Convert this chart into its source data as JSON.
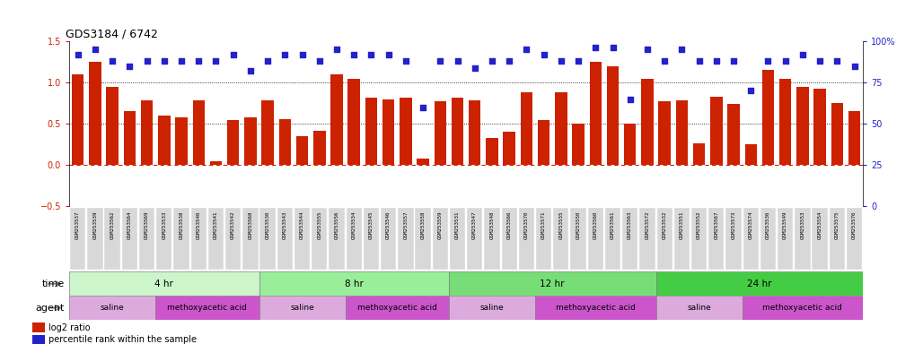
{
  "title": "GDS3184 / 6742",
  "sample_labels": [
    "GSM253537",
    "GSM253539",
    "GSM253562",
    "GSM253564",
    "GSM253569",
    "GSM253533",
    "GSM253538",
    "GSM253540",
    "GSM253541",
    "GSM253542",
    "GSM253568",
    "GSM253530",
    "GSM253543",
    "GSM253544",
    "GSM253555",
    "GSM253556",
    "GSM253534",
    "GSM253545",
    "GSM253546",
    "GSM253557",
    "GSM253558",
    "GSM253559",
    "GSM253531",
    "GSM253547",
    "GSM253548",
    "GSM253566",
    "GSM253570",
    "GSM253571",
    "GSM253535",
    "GSM253550",
    "GSM253560",
    "GSM253561",
    "GSM253563",
    "GSM253572",
    "GSM253532",
    "GSM253551",
    "GSM253552",
    "GSM253567",
    "GSM253573",
    "GSM253574",
    "GSM253536",
    "GSM253549",
    "GSM253553",
    "GSM253554",
    "GSM253575",
    "GSM253576"
  ],
  "log2_ratio": [
    1.1,
    1.25,
    0.95,
    0.65,
    0.79,
    0.6,
    0.58,
    0.78,
    0.05,
    0.55,
    0.58,
    0.79,
    0.56,
    0.35,
    0.42,
    1.1,
    1.05,
    0.82,
    0.8,
    0.82,
    0.08,
    0.77,
    0.82,
    0.78,
    0.33,
    0.41,
    0.88,
    0.55,
    0.88,
    0.5,
    1.25,
    1.2,
    0.5,
    1.05,
    0.77,
    0.78,
    0.26,
    0.83,
    0.74,
    0.25,
    1.15,
    1.05,
    0.95,
    0.93,
    0.75,
    0.65
  ],
  "percentile_rank": [
    92,
    95,
    88,
    85,
    88,
    88,
    88,
    88,
    88,
    92,
    82,
    88,
    92,
    92,
    88,
    95,
    92,
    92,
    92,
    88,
    60,
    88,
    88,
    84,
    88,
    88,
    95,
    92,
    88,
    88,
    96,
    96,
    65,
    95,
    88,
    95,
    88,
    88,
    88,
    70,
    88,
    88,
    92,
    88,
    88,
    85
  ],
  "bar_color": "#cc2200",
  "dot_color": "#2222cc",
  "ylim_left": [
    -0.5,
    1.5
  ],
  "ylim_right": [
    0,
    100
  ],
  "yticks_left": [
    -0.5,
    0.0,
    0.5,
    1.0,
    1.5
  ],
  "yticks_right": [
    0,
    25,
    50,
    75,
    100
  ],
  "time_groups": [
    {
      "label": "4 hr",
      "start": 0,
      "end": 11,
      "color": "#ccf5cc"
    },
    {
      "label": "8 hr",
      "start": 11,
      "end": 22,
      "color": "#99ee99"
    },
    {
      "label": "12 hr",
      "start": 22,
      "end": 34,
      "color": "#77dd77"
    },
    {
      "label": "24 hr",
      "start": 34,
      "end": 46,
      "color": "#44cc44"
    }
  ],
  "agent_groups": [
    {
      "label": "saline",
      "start": 0,
      "end": 5,
      "color": "#ddaadd"
    },
    {
      "label": "methoxyacetic acid",
      "start": 5,
      "end": 11,
      "color": "#cc55cc"
    },
    {
      "label": "saline",
      "start": 11,
      "end": 16,
      "color": "#ddaadd"
    },
    {
      "label": "methoxyacetic acid",
      "start": 16,
      "end": 22,
      "color": "#cc55cc"
    },
    {
      "label": "saline",
      "start": 22,
      "end": 27,
      "color": "#ddaadd"
    },
    {
      "label": "methoxyacetic acid",
      "start": 27,
      "end": 34,
      "color": "#cc55cc"
    },
    {
      "label": "saline",
      "start": 34,
      "end": 39,
      "color": "#ddaadd"
    },
    {
      "label": "methoxyacetic acid",
      "start": 39,
      "end": 46,
      "color": "#cc55cc"
    }
  ]
}
